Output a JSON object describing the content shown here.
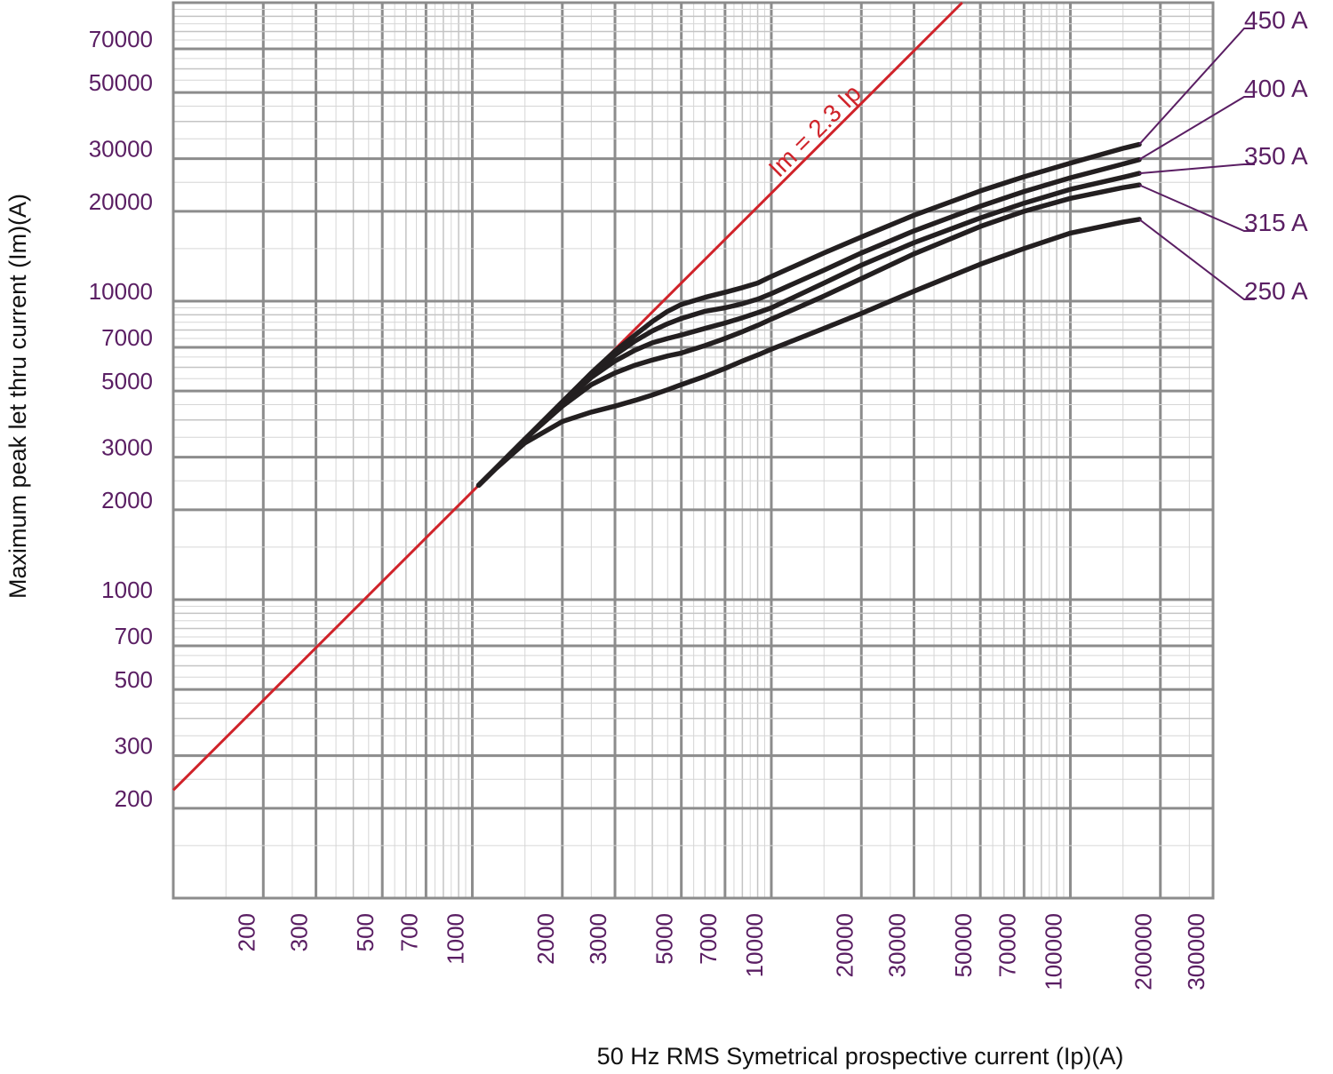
{
  "chart_data": {
    "type": "line",
    "title": "",
    "xlabel": "50 Hz RMS Symetrical prospective current (Ip)(A)",
    "ylabel": "Maximum peak let thru current (Im)(A)",
    "x_scale": "log",
    "y_scale": "log",
    "xlim": [
      100,
      300000
    ],
    "ylim": [
      100,
      100000
    ],
    "grid": true,
    "x_tick_labels": [
      "200",
      "300",
      "500",
      "700",
      "1000",
      "2000",
      "3000",
      "5000",
      "7000",
      "10000",
      "20000",
      "30000",
      "50000",
      "70000",
      "100000",
      "200000",
      "300000"
    ],
    "y_tick_labels": [
      "200",
      "300",
      "500",
      "700",
      "1000",
      "2000",
      "3000",
      "5000",
      "7000",
      "10000",
      "20000",
      "30000",
      "50000",
      "70000"
    ],
    "reference_line": {
      "label": "Im = 2.3 Ip",
      "factor": 2.3,
      "color": "#d0232a"
    },
    "series": [
      {
        "name": "450 A",
        "color": "#231f20",
        "x": [
          1050,
          1200,
          1500,
          2000,
          2500,
          3000,
          3500,
          4000,
          4500,
          5000,
          6000,
          7000,
          8000,
          9000,
          10000,
          15000,
          20000,
          30000,
          50000,
          70000,
          100000,
          150000,
          170000
        ],
        "y": [
          2415,
          2760,
          3450,
          4600,
          5750,
          6800,
          7700,
          8550,
          9250,
          9750,
          10300,
          10700,
          11100,
          11500,
          12100,
          14500,
          16400,
          19400,
          23400,
          26100,
          29000,
          32500,
          33500
        ]
      },
      {
        "name": "400 A",
        "color": "#231f20",
        "x": [
          1050,
          1200,
          1500,
          2000,
          2500,
          3000,
          3500,
          4000,
          4500,
          5000,
          6000,
          7000,
          8000,
          9000,
          10000,
          15000,
          20000,
          30000,
          50000,
          70000,
          100000,
          150000,
          170000
        ],
        "y": [
          2415,
          2760,
          3450,
          4600,
          5700,
          6600,
          7350,
          7950,
          8400,
          8750,
          9250,
          9500,
          9800,
          10150,
          10600,
          12700,
          14500,
          17200,
          20800,
          23300,
          25900,
          28800,
          29800
        ]
      },
      {
        "name": "350 A",
        "color": "#231f20",
        "x": [
          1050,
          1200,
          1500,
          2000,
          2500,
          3000,
          3500,
          4000,
          4500,
          5000,
          6000,
          7000,
          8000,
          9000,
          10000,
          15000,
          20000,
          30000,
          50000,
          70000,
          100000,
          150000,
          170000
        ],
        "y": [
          2415,
          2760,
          3450,
          4550,
          5550,
          6300,
          6850,
          7250,
          7500,
          7700,
          8100,
          8450,
          8800,
          9150,
          9500,
          11500,
          13200,
          15700,
          19000,
          21300,
          23700,
          26000,
          26800
        ]
      },
      {
        "name": "315 A",
        "color": "#231f20",
        "x": [
          1050,
          1200,
          1500,
          2000,
          2500,
          3000,
          3500,
          4000,
          4500,
          5000,
          6000,
          7000,
          8000,
          9000,
          10000,
          15000,
          20000,
          30000,
          50000,
          70000,
          100000,
          150000,
          170000
        ],
        "y": [
          2415,
          2760,
          3450,
          4450,
          5250,
          5750,
          6100,
          6350,
          6550,
          6700,
          7100,
          7500,
          7900,
          8300,
          8700,
          10400,
          11900,
          14400,
          17800,
          20000,
          22100,
          24000,
          24500
        ]
      },
      {
        "name": "250 A",
        "color": "#231f20",
        "x": [
          1050,
          1200,
          1500,
          2000,
          2500,
          3000,
          3500,
          4000,
          4500,
          5000,
          6000,
          7000,
          8000,
          9000,
          10000,
          15000,
          20000,
          30000,
          50000,
          70000,
          100000,
          150000,
          170000
        ],
        "y": [
          2415,
          2750,
          3350,
          3950,
          4250,
          4450,
          4650,
          4850,
          5050,
          5250,
          5600,
          5950,
          6300,
          6600,
          6900,
          8100,
          9100,
          10800,
          13300,
          15000,
          16900,
          18400,
          18800
        ]
      }
    ]
  }
}
